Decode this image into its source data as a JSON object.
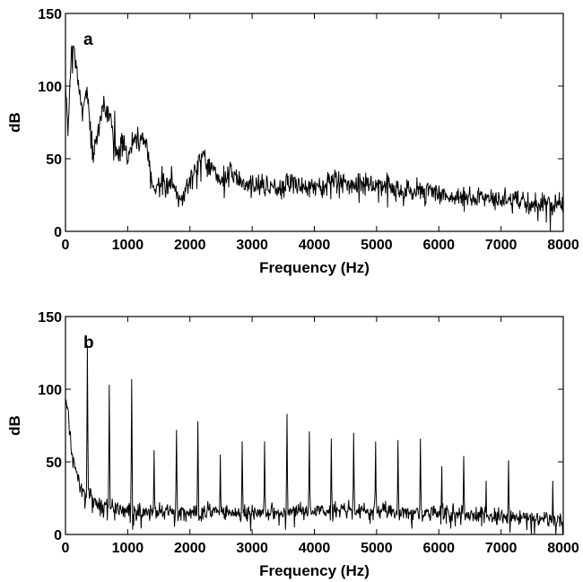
{
  "chart_data": [
    {
      "type": "line",
      "panel_label": "a",
      "xlabel": "Frequency (Hz)",
      "ylabel": "dB",
      "xlim": [
        0,
        8000
      ],
      "ylim": [
        0,
        150
      ],
      "x_ticks": [
        0,
        1000,
        2000,
        3000,
        4000,
        5000,
        6000,
        7000,
        8000
      ],
      "y_ticks": [
        0,
        50,
        100,
        150
      ],
      "grid": false,
      "line_color": "#000000",
      "x": [
        0,
        40,
        100,
        170,
        250,
        350,
        450,
        600,
        700,
        800,
        900,
        1000,
        1100,
        1200,
        1300,
        1400,
        1500,
        1600,
        1700,
        1800,
        1900,
        2000,
        2100,
        2200,
        2300,
        2400,
        2500,
        2600,
        2700,
        2800,
        2900,
        3000,
        3200,
        3400,
        3600,
        3800,
        4000,
        4200,
        4400,
        4600,
        4800,
        5000,
        5200,
        5400,
        5600,
        5800,
        6000,
        6200,
        6400,
        6600,
        6800,
        7000,
        7200,
        7400,
        7600,
        7800,
        8000
      ],
      "values": [
        100,
        70,
        128,
        118,
        83,
        97,
        50,
        87,
        83,
        55,
        60,
        50,
        65,
        64,
        63,
        30,
        32,
        30,
        34,
        27,
        24,
        36,
        45,
        55,
        45,
        40,
        36,
        38,
        38,
        36,
        32,
        33,
        31,
        31,
        35,
        31,
        30,
        33,
        36,
        34,
        33,
        32,
        31,
        29,
        27,
        29,
        25,
        24,
        22,
        24,
        24,
        22,
        21,
        19,
        19,
        20,
        16
      ],
      "spikes": [
        {
          "x": 100,
          "y": 128
        },
        {
          "x": 170,
          "y": 118
        },
        {
          "x": 330,
          "y": 97
        },
        {
          "x": 600,
          "y": 87
        },
        {
          "x": 720,
          "y": 80
        },
        {
          "x": 790,
          "y": 83
        },
        {
          "x": 1100,
          "y": 65
        },
        {
          "x": 1200,
          "y": 63
        },
        {
          "x": 1300,
          "y": 63
        },
        {
          "x": 1550,
          "y": 45
        },
        {
          "x": 1700,
          "y": 45
        }
      ]
    },
    {
      "type": "line",
      "panel_label": "b",
      "xlabel": "Frequency (Hz)",
      "ylabel": "dB",
      "xlim": [
        0,
        8000
      ],
      "ylim": [
        0,
        150
      ],
      "x_ticks": [
        0,
        1000,
        2000,
        3000,
        4000,
        5000,
        6000,
        7000,
        8000
      ],
      "y_ticks": [
        0,
        50,
        100,
        150
      ],
      "grid": false,
      "line_color": "#000000",
      "x": [
        0,
        50,
        100,
        200,
        300,
        500,
        700,
        900,
        1200,
        1500,
        2000,
        2500,
        3000,
        3500,
        4000,
        4500,
        5000,
        5500,
        6000,
        6500,
        7000,
        7500,
        8000
      ],
      "values": [
        95,
        80,
        55,
        38,
        30,
        22,
        18,
        17,
        16,
        16,
        16,
        15,
        15,
        16,
        16,
        17,
        16,
        15,
        15,
        14,
        12,
        11,
        10
      ],
      "spikes": [
        {
          "x": 350,
          "y": 130
        },
        {
          "x": 700,
          "y": 103
        },
        {
          "x": 1060,
          "y": 107
        },
        {
          "x": 1420,
          "y": 58
        },
        {
          "x": 1780,
          "y": 72
        },
        {
          "x": 2130,
          "y": 78
        },
        {
          "x": 2490,
          "y": 55
        },
        {
          "x": 2840,
          "y": 64
        },
        {
          "x": 3200,
          "y": 64
        },
        {
          "x": 3560,
          "y": 83
        },
        {
          "x": 3920,
          "y": 71
        },
        {
          "x": 4270,
          "y": 66
        },
        {
          "x": 4630,
          "y": 70
        },
        {
          "x": 4980,
          "y": 64
        },
        {
          "x": 5340,
          "y": 65
        },
        {
          "x": 5700,
          "y": 66
        },
        {
          "x": 6050,
          "y": 47
        },
        {
          "x": 6400,
          "y": 54
        },
        {
          "x": 6760,
          "y": 37
        },
        {
          "x": 7120,
          "y": 51
        },
        {
          "x": 7830,
          "y": 37
        }
      ]
    }
  ]
}
